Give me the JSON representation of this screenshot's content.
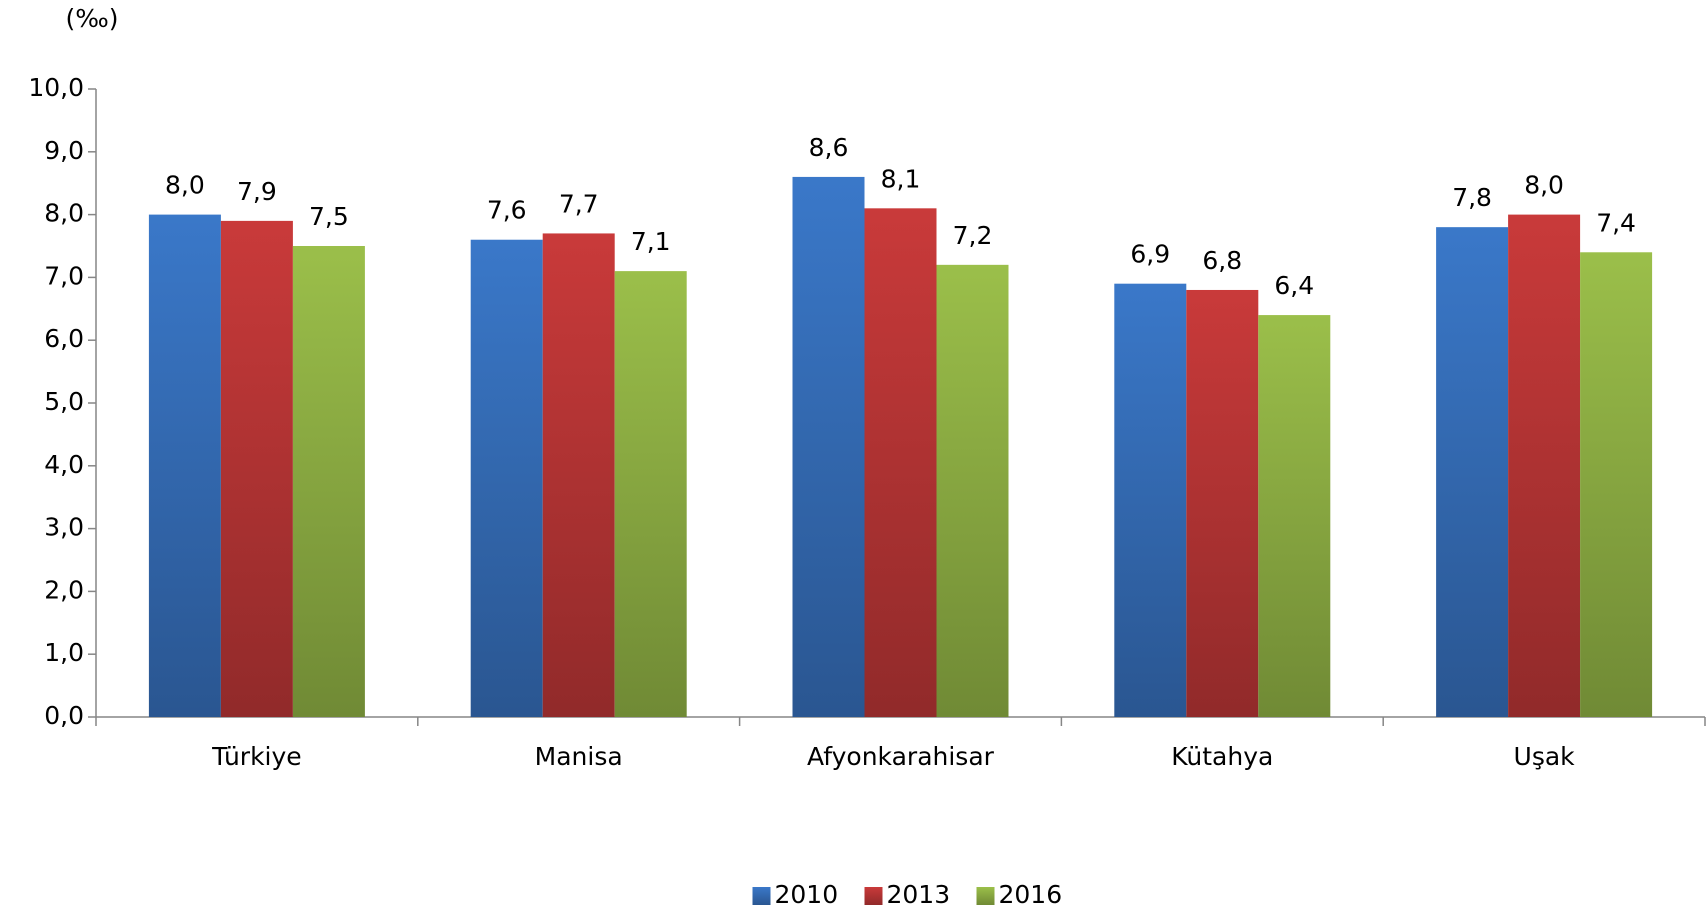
{
  "chart_data": {
    "type": "bar",
    "ylabel": "(‰)",
    "categories": [
      "Türkiye",
      "Manisa",
      "Afyonkarahisar",
      "Kütahya",
      "Uşak"
    ],
    "series": [
      {
        "name": "2010",
        "color": "#3a78c9",
        "values": [
          8.0,
          7.6,
          8.6,
          6.9,
          7.8
        ],
        "value_labels": [
          "8,0",
          "7,6",
          "8,6",
          "6,9",
          "7,8"
        ]
      },
      {
        "name": "2013",
        "color": "#c93a3a",
        "values": [
          7.9,
          7.7,
          8.1,
          6.8,
          8.0
        ],
        "value_labels": [
          "7,9",
          "7,7",
          "8,1",
          "6,8",
          "8,0"
        ]
      },
      {
        "name": "2016",
        "color": "#9bbf4a",
        "values": [
          7.5,
          7.1,
          7.2,
          6.4,
          7.4
        ],
        "value_labels": [
          "7,5",
          "7,1",
          "7,2",
          "6,4",
          "7,4"
        ]
      }
    ],
    "ylim": [
      0,
      10
    ],
    "yticks": [
      {
        "value": 0,
        "label": "0,0"
      },
      {
        "value": 1,
        "label": "1,0"
      },
      {
        "value": 2,
        "label": "2,0"
      },
      {
        "value": 3,
        "label": "3,0"
      },
      {
        "value": 4,
        "label": "4,0"
      },
      {
        "value": 5,
        "label": "5,0"
      },
      {
        "value": 6,
        "label": "6,0"
      },
      {
        "value": 7,
        "label": "7,0"
      },
      {
        "value": 8,
        "label": "8,0"
      },
      {
        "value": 9,
        "label": "9,0"
      },
      {
        "value": 10,
        "label": "10,0"
      }
    ],
    "grid": false,
    "legend": "bottom"
  }
}
